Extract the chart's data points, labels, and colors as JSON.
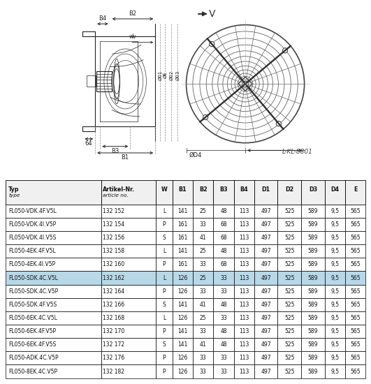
{
  "diagram_label": "L-KL-8801",
  "table_headers_row1": [
    "Typ",
    "Artikel-Nr.",
    "W",
    "B1",
    "B2",
    "B3",
    "B4",
    "D1",
    "D2",
    "D3",
    "D4",
    "E"
  ],
  "table_headers_row2": [
    "type",
    "article no.",
    "",
    "",
    "",
    "",
    "",
    "",
    "",
    "",
    "",
    ""
  ],
  "table_rows": [
    [
      "FL050-VDK.4F.V5L",
      "132 152",
      "L",
      "141",
      "25",
      "48",
      "113",
      "497",
      "525",
      "589",
      "9,5",
      "565"
    ],
    [
      "FL050-VDK.4I.V5P",
      "132 154",
      "P",
      "161",
      "33",
      "68",
      "113",
      "497",
      "525",
      "589",
      "9,5",
      "565"
    ],
    [
      "FL050-VDK.4I.V5S",
      "132 156",
      "S",
      "161",
      "41",
      "68",
      "113",
      "497",
      "525",
      "589",
      "9,5",
      "565"
    ],
    [
      "FL050-4EK.4F.V5L",
      "132 158",
      "L",
      "141",
      "25",
      "48",
      "113",
      "497",
      "525",
      "589",
      "9,5",
      "565"
    ],
    [
      "FL050-4EK.4I.V5P",
      "132 160",
      "P",
      "161",
      "33",
      "68",
      "113",
      "497",
      "525",
      "589",
      "9,5",
      "565"
    ],
    [
      "FL050-SDK.4C.V5L",
      "132 162",
      "L",
      "126",
      "25",
      "33",
      "113",
      "497",
      "525",
      "589",
      "9,5",
      "565"
    ],
    [
      "FL050-SDK.4C.V5P",
      "132 164",
      "P",
      "126",
      "33",
      "33",
      "113",
      "497",
      "525",
      "589",
      "9,5",
      "565"
    ],
    [
      "FL050-SDK.4F.V5S",
      "132 166",
      "S",
      "141",
      "41",
      "48",
      "113",
      "497",
      "525",
      "589",
      "9,5",
      "565"
    ],
    [
      "FL050-6EK.4C.V5L",
      "132 168",
      "L",
      "126",
      "25",
      "33",
      "113",
      "497",
      "525",
      "589",
      "9,5",
      "565"
    ],
    [
      "FL050-6EK.4F.V5P",
      "132 170",
      "P",
      "141",
      "33",
      "48",
      "113",
      "497",
      "525",
      "589",
      "9,5",
      "565"
    ],
    [
      "FL050-6EK.4F.V5S",
      "132 172",
      "S",
      "141",
      "41",
      "48",
      "113",
      "497",
      "525",
      "589",
      "9,5",
      "565"
    ],
    [
      "FL050-ADK.4C.V5P",
      "132 176",
      "P",
      "126",
      "33",
      "33",
      "113",
      "497",
      "525",
      "589",
      "9,5",
      "565"
    ],
    [
      "FL050-8EK.4C.V5P",
      "132 182",
      "P",
      "126",
      "33",
      "33",
      "113",
      "497",
      "525",
      "589",
      "9,5",
      "565"
    ]
  ],
  "highlight_row": 5,
  "highlight_color": "#b8d8e8",
  "bg_color": "#ffffff",
  "border_color": "#000000",
  "col_widths": [
    1.55,
    0.88,
    0.27,
    0.33,
    0.33,
    0.33,
    0.33,
    0.38,
    0.38,
    0.38,
    0.33,
    0.33
  ]
}
